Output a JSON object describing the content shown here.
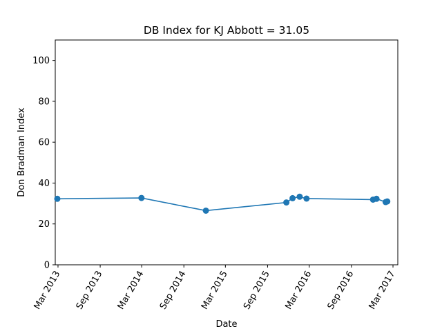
{
  "chart_data": {
    "type": "line",
    "title": "DB Index for KJ Abbott = 31.05",
    "xlabel": "Date",
    "ylabel": "Don Bradman Index",
    "ylim": [
      0,
      110
    ],
    "yticks": [
      0,
      20,
      40,
      60,
      80,
      100
    ],
    "xlim": [
      "2013-02-17",
      "2017-03-22"
    ],
    "xticks": [
      {
        "date": "2013-03-01",
        "label": "Mar 2013"
      },
      {
        "date": "2013-09-01",
        "label": "Sep 2013"
      },
      {
        "date": "2014-03-01",
        "label": "Mar 2014"
      },
      {
        "date": "2014-09-01",
        "label": "Sep 2014"
      },
      {
        "date": "2015-03-01",
        "label": "Mar 2015"
      },
      {
        "date": "2015-09-01",
        "label": "Sep 2015"
      },
      {
        "date": "2016-03-01",
        "label": "Mar 2016"
      },
      {
        "date": "2016-09-01",
        "label": "Sep 2016"
      },
      {
        "date": "2017-03-01",
        "label": "Mar 2017"
      }
    ],
    "grid": false,
    "series": [
      {
        "color": "#1f77b4",
        "marker": "circle",
        "points": [
          {
            "x": "2013-02-26",
            "y": 32.3
          },
          {
            "x": "2014-02-28",
            "y": 32.7
          },
          {
            "x": "2014-12-06",
            "y": 26.5
          },
          {
            "x": "2015-11-22",
            "y": 30.5
          },
          {
            "x": "2015-12-19",
            "y": 32.6
          },
          {
            "x": "2016-01-19",
            "y": 33.3
          },
          {
            "x": "2016-02-18",
            "y": 32.4
          },
          {
            "x": "2016-12-04",
            "y": 31.9
          },
          {
            "x": "2016-12-19",
            "y": 32.3
          },
          {
            "x": "2017-01-28",
            "y": 30.7
          },
          {
            "x": "2017-02-04",
            "y": 31.0
          }
        ]
      }
    ]
  }
}
